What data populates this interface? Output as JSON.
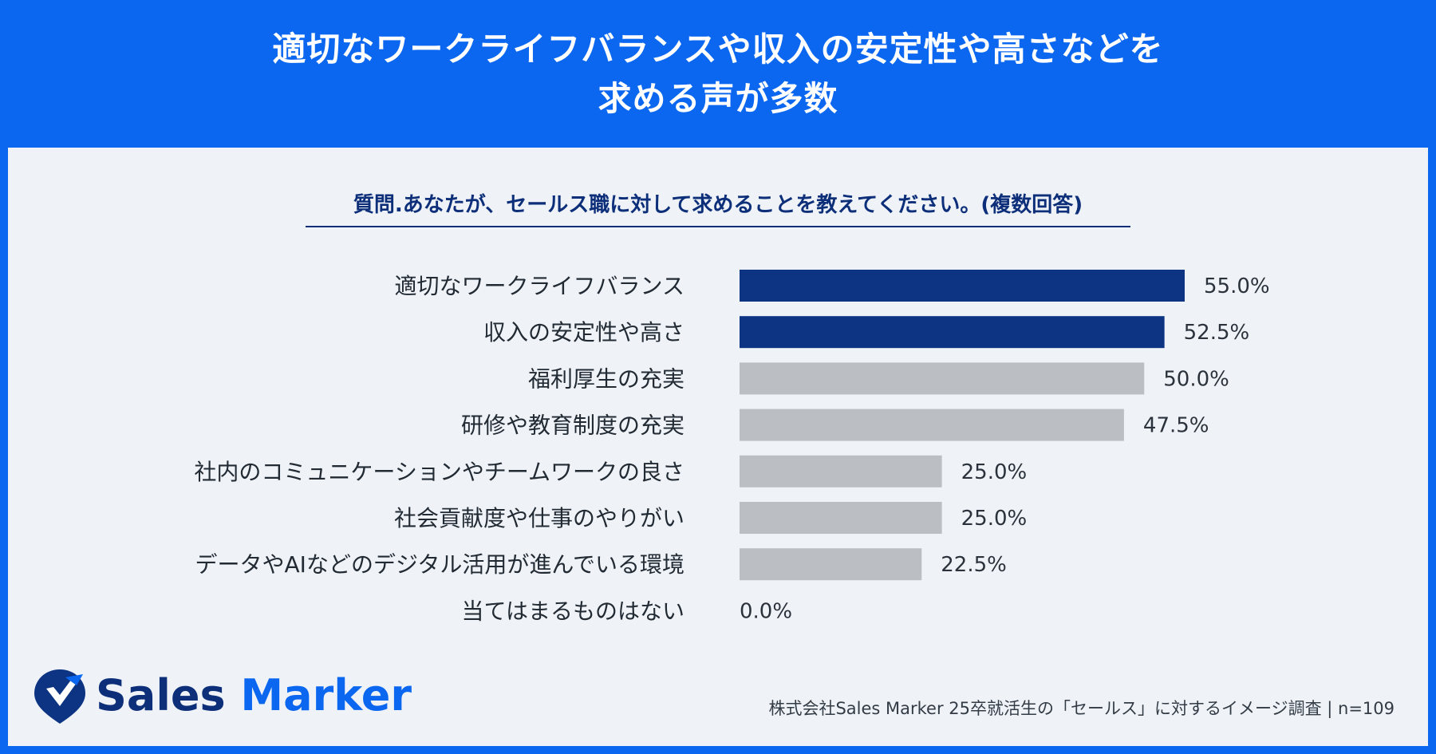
{
  "header": {
    "title_line1": "適切なワークライフバランスや収入の安定性や高さなどを",
    "title_line2": "求める声が多数"
  },
  "question": "質問.あなたが、セールス職に対して求めることを教えてください。(複数回答)",
  "logo": {
    "word1": "Sales",
    "word2": "Marker"
  },
  "source": "株式会社Sales Marker 25卒就活生の「セールス」に対するイメージ調査 | n=109",
  "colors": {
    "frame": "#0b67f0",
    "highlight_bar": "#0d3483",
    "default_bar": "#bbbfc3",
    "panel_bg": "#eff3f8"
  },
  "chart_data": {
    "type": "bar",
    "orientation": "horizontal",
    "categories": [
      "適切なワークライフバランス",
      "収入の安定性や高さ",
      "福利厚生の充実",
      "研修や教育制度の充実",
      "社内のコミュニケーションやチームワークの良さ",
      "社会貢献度や仕事のやりがい",
      "データやAIなどのデジタル活用が進んでいる環境",
      "当てはまるものはない"
    ],
    "values": [
      55.0,
      52.5,
      50.0,
      47.5,
      25.0,
      25.0,
      22.5,
      0.0
    ],
    "value_labels": [
      "55.0%",
      "52.5%",
      "50.0%",
      "47.5%",
      "25.0%",
      "25.0%",
      "22.5%",
      "0.0%"
    ],
    "highlighted": [
      true,
      true,
      false,
      false,
      false,
      false,
      false,
      false
    ],
    "xlim": [
      0,
      100
    ],
    "grid": false,
    "legend": false
  }
}
